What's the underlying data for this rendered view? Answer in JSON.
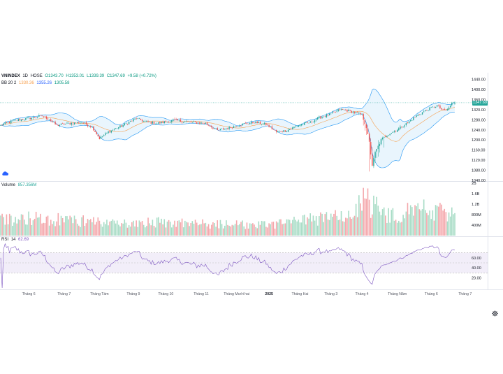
{
  "header": {
    "symbol": "VNINDEX",
    "interval": "1D",
    "exchange": "HOSE",
    "open": "O1343.70",
    "high": "H1353.01",
    "low": "L1339.39",
    "close": "C1347.69",
    "change": "+9.58 (+0.72%)"
  },
  "bb_legend": {
    "label": "BB 20 2",
    "basis": "1330.36",
    "upper": "1355.26",
    "lower": "1305.58"
  },
  "volume_legend": {
    "label": "Volume",
    "value": "857.356M"
  },
  "rsi_legend": {
    "label": "RSI",
    "length": "14",
    "value": "62.69"
  },
  "last_price_label": "1347.69",
  "colors": {
    "up": "#26a69a",
    "down": "#ef5350",
    "vol_up": "#a8dcc6",
    "vol_down": "#f4a8ac",
    "bb_basis": "#f7a04f",
    "bb_band": "#2196f3",
    "bb_fill": "#e3f2fd",
    "rsi_line": "#7e57c2",
    "rsi_fill": "#ede7f6"
  },
  "icons": {
    "cloud": "cloud-icon",
    "settings": "gear-icon"
  },
  "chart_data": {
    "type": "line",
    "price_axis": {
      "ticks": [
        "1440.00",
        "1400.00",
        "1360.00",
        "1320.00",
        "1280.00",
        "1240.00",
        "1200.00",
        "1160.00",
        "1120.00",
        "1080.00",
        "1040.00"
      ],
      "ylim": [
        1040,
        1450
      ]
    },
    "volume_axis": {
      "ticks": [
        "2B",
        "1.6B",
        "1.2B",
        "800M",
        "400M"
      ],
      "ylim": [
        0,
        2000
      ]
    },
    "rsi_axis": {
      "ticks": [
        "60.00",
        "40.00",
        "20.00"
      ],
      "ylim": [
        0,
        100
      ],
      "band": [
        30,
        70
      ]
    },
    "x_ticks": [
      "Tháng 6",
      "Tháng 7",
      "Tháng Tám",
      "Tháng 9",
      "Tháng 10",
      "Tháng 11",
      "Tháng Mười hai",
      "2025",
      "Tháng Hai",
      "Tháng 3",
      "Tháng 4",
      "Tháng Năm",
      "Tháng 6",
      "Tháng 7"
    ],
    "x_tick_index": [
      19,
      43,
      67,
      90,
      112,
      136,
      160,
      182,
      203,
      224,
      245,
      269,
      292,
      315
    ],
    "close_keypoints": [
      [
        0,
        1258
      ],
      [
        10,
        1278
      ],
      [
        20,
        1286
      ],
      [
        28,
        1296
      ],
      [
        33,
        1282
      ],
      [
        38,
        1258
      ],
      [
        44,
        1264
      ],
      [
        55,
        1270
      ],
      [
        62,
        1252
      ],
      [
        67,
        1206
      ],
      [
        73,
        1232
      ],
      [
        82,
        1256
      ],
      [
        92,
        1286
      ],
      [
        98,
        1272
      ],
      [
        106,
        1266
      ],
      [
        118,
        1278
      ],
      [
        126,
        1272
      ],
      [
        133,
        1268
      ],
      [
        139,
        1266
      ],
      [
        147,
        1238
      ],
      [
        156,
        1250
      ],
      [
        165,
        1264
      ],
      [
        172,
        1270
      ],
      [
        180,
        1262
      ],
      [
        187,
        1232
      ],
      [
        194,
        1238
      ],
      [
        203,
        1260
      ],
      [
        210,
        1270
      ],
      [
        216,
        1288
      ],
      [
        224,
        1302
      ],
      [
        230,
        1320
      ],
      [
        236,
        1316
      ],
      [
        242,
        1306
      ],
      [
        245,
        1300
      ],
      [
        248,
        1250
      ],
      [
        250,
        1190
      ],
      [
        252,
        1100
      ],
      [
        254,
        1150
      ],
      [
        258,
        1200
      ],
      [
        262,
        1220
      ],
      [
        268,
        1238
      ],
      [
        276,
        1268
      ],
      [
        282,
        1296
      ],
      [
        290,
        1322
      ],
      [
        296,
        1336
      ],
      [
        300,
        1316
      ],
      [
        303,
        1320
      ],
      [
        306,
        1345
      ],
      [
        308,
        1348
      ]
    ],
    "volume_keypoints": [
      [
        0,
        620
      ],
      [
        20,
        700
      ],
      [
        40,
        640
      ],
      [
        60,
        560
      ],
      [
        80,
        480
      ],
      [
        100,
        520
      ],
      [
        120,
        560
      ],
      [
        140,
        460
      ],
      [
        160,
        440
      ],
      [
        180,
        420
      ],
      [
        200,
        540
      ],
      [
        220,
        720
      ],
      [
        240,
        840
      ],
      [
        245,
        1500
      ],
      [
        248,
        1750
      ],
      [
        251,
        1200
      ],
      [
        255,
        1100
      ],
      [
        262,
        800
      ],
      [
        275,
        940
      ],
      [
        290,
        1050
      ],
      [
        300,
        950
      ],
      [
        308,
        860
      ]
    ],
    "volume_last": 857.356
  }
}
